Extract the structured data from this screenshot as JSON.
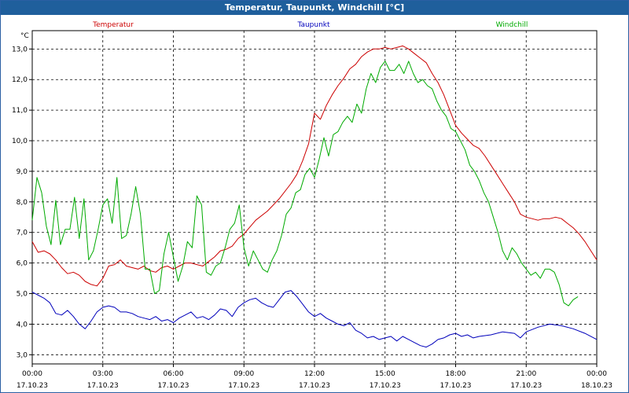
{
  "window": {
    "title": "Temperatur, Taupunkt, Windchill [°C]"
  },
  "chart_data": {
    "type": "line",
    "title": "Temperatur, Taupunkt, Windchill [°C]",
    "yunit": "°C",
    "ylim": [
      2.7,
      13.6
    ],
    "yticks": [
      "3,0",
      "4,0",
      "5,0",
      "6,0",
      "7,0",
      "8,0",
      "9,0",
      "10,0",
      "11,0",
      "12,0",
      "13,0"
    ],
    "xticks": [
      {
        "time": "00:00",
        "date": "17.10.23"
      },
      {
        "time": "03:00",
        "date": "17.10.23"
      },
      {
        "time": "06:00",
        "date": "17.10.23"
      },
      {
        "time": "09:00",
        "date": "17.10.23"
      },
      {
        "time": "12:00",
        "date": "17.10.23"
      },
      {
        "time": "15:00",
        "date": "17.10.23"
      },
      {
        "time": "18:00",
        "date": "17.10.23"
      },
      {
        "time": "21:00",
        "date": "17.10.23"
      },
      {
        "time": "00:00",
        "date": "18.10.23"
      }
    ],
    "xlim_hours": [
      0,
      24
    ],
    "grid": true,
    "series": [
      {
        "name": "Temperatur",
        "color": "#cc0000",
        "points": [
          [
            0,
            6.7
          ],
          [
            0.25,
            6.35
          ],
          [
            0.5,
            6.4
          ],
          [
            0.75,
            6.3
          ],
          [
            1,
            6.1
          ],
          [
            1.25,
            5.85
          ],
          [
            1.5,
            5.65
          ],
          [
            1.75,
            5.7
          ],
          [
            2,
            5.6
          ],
          [
            2.25,
            5.4
          ],
          [
            2.5,
            5.3
          ],
          [
            2.75,
            5.25
          ],
          [
            3,
            5.5
          ],
          [
            3.25,
            5.9
          ],
          [
            3.5,
            5.95
          ],
          [
            3.75,
            6.1
          ],
          [
            4,
            5.9
          ],
          [
            4.25,
            5.85
          ],
          [
            4.5,
            5.8
          ],
          [
            4.75,
            5.9
          ],
          [
            5,
            5.75
          ],
          [
            5.25,
            5.7
          ],
          [
            5.5,
            5.85
          ],
          [
            5.75,
            5.9
          ],
          [
            6,
            5.8
          ],
          [
            6.25,
            5.9
          ],
          [
            6.5,
            6.0
          ],
          [
            6.75,
            6.0
          ],
          [
            7,
            5.95
          ],
          [
            7.25,
            5.9
          ],
          [
            7.5,
            6.05
          ],
          [
            7.75,
            6.2
          ],
          [
            8,
            6.4
          ],
          [
            8.25,
            6.45
          ],
          [
            8.5,
            6.55
          ],
          [
            8.75,
            6.8
          ],
          [
            9,
            6.95
          ],
          [
            9.5,
            7.4
          ],
          [
            10,
            7.7
          ],
          [
            10.5,
            8.1
          ],
          [
            11,
            8.6
          ],
          [
            11.25,
            8.9
          ],
          [
            11.5,
            9.35
          ],
          [
            11.75,
            9.9
          ],
          [
            12,
            10.9
          ],
          [
            12.25,
            10.7
          ],
          [
            12.5,
            11.15
          ],
          [
            12.75,
            11.5
          ],
          [
            13,
            11.8
          ],
          [
            13.25,
            12.05
          ],
          [
            13.5,
            12.35
          ],
          [
            13.75,
            12.5
          ],
          [
            14,
            12.75
          ],
          [
            14.25,
            12.9
          ],
          [
            14.5,
            13.0
          ],
          [
            14.75,
            13.0
          ],
          [
            15,
            13.05
          ],
          [
            15.25,
            13.0
          ],
          [
            15.5,
            13.05
          ],
          [
            15.75,
            13.1
          ],
          [
            16,
            13.0
          ],
          [
            16.25,
            12.85
          ],
          [
            16.5,
            12.7
          ],
          [
            16.75,
            12.55
          ],
          [
            17,
            12.2
          ],
          [
            17.25,
            11.9
          ],
          [
            17.5,
            11.5
          ],
          [
            17.75,
            11.0
          ],
          [
            18,
            10.5
          ],
          [
            18.25,
            10.25
          ],
          [
            18.5,
            10.05
          ],
          [
            18.75,
            9.85
          ],
          [
            19,
            9.75
          ],
          [
            19.25,
            9.5
          ],
          [
            19.5,
            9.2
          ],
          [
            19.75,
            8.9
          ],
          [
            20,
            8.6
          ],
          [
            20.25,
            8.3
          ],
          [
            20.5,
            8.0
          ],
          [
            20.75,
            7.6
          ],
          [
            21,
            7.5
          ],
          [
            21.25,
            7.45
          ],
          [
            21.5,
            7.4
          ],
          [
            21.75,
            7.45
          ],
          [
            22,
            7.45
          ],
          [
            22.25,
            7.5
          ],
          [
            22.5,
            7.45
          ],
          [
            22.75,
            7.3
          ],
          [
            23,
            7.15
          ],
          [
            23.25,
            6.95
          ],
          [
            23.5,
            6.7
          ],
          [
            23.75,
            6.4
          ],
          [
            24,
            6.1
          ]
        ]
      },
      {
        "name": "Taupunkt",
        "color": "#0000bb",
        "points": [
          [
            0,
            5.05
          ],
          [
            0.25,
            4.95
          ],
          [
            0.5,
            4.85
          ],
          [
            0.75,
            4.7
          ],
          [
            1,
            4.35
          ],
          [
            1.25,
            4.3
          ],
          [
            1.5,
            4.45
          ],
          [
            1.75,
            4.25
          ],
          [
            2,
            4.0
          ],
          [
            2.25,
            3.85
          ],
          [
            2.5,
            4.1
          ],
          [
            2.75,
            4.4
          ],
          [
            3,
            4.55
          ],
          [
            3.25,
            4.6
          ],
          [
            3.5,
            4.55
          ],
          [
            3.75,
            4.4
          ],
          [
            4,
            4.4
          ],
          [
            4.25,
            4.35
          ],
          [
            4.5,
            4.25
          ],
          [
            4.75,
            4.2
          ],
          [
            5,
            4.15
          ],
          [
            5.25,
            4.25
          ],
          [
            5.5,
            4.1
          ],
          [
            5.75,
            4.15
          ],
          [
            6,
            4.05
          ],
          [
            6.25,
            4.2
          ],
          [
            6.5,
            4.3
          ],
          [
            6.75,
            4.4
          ],
          [
            7,
            4.2
          ],
          [
            7.25,
            4.25
          ],
          [
            7.5,
            4.15
          ],
          [
            7.75,
            4.3
          ],
          [
            8,
            4.5
          ],
          [
            8.25,
            4.45
          ],
          [
            8.5,
            4.25
          ],
          [
            8.75,
            4.55
          ],
          [
            9,
            4.7
          ],
          [
            9.25,
            4.8
          ],
          [
            9.5,
            4.85
          ],
          [
            9.75,
            4.7
          ],
          [
            10,
            4.6
          ],
          [
            10.25,
            4.55
          ],
          [
            10.5,
            4.8
          ],
          [
            10.75,
            5.05
          ],
          [
            11,
            5.1
          ],
          [
            11.25,
            4.9
          ],
          [
            11.5,
            4.65
          ],
          [
            11.75,
            4.4
          ],
          [
            12,
            4.25
          ],
          [
            12.25,
            4.35
          ],
          [
            12.5,
            4.2
          ],
          [
            12.75,
            4.1
          ],
          [
            13,
            4.0
          ],
          [
            13.25,
            3.95
          ],
          [
            13.5,
            4.05
          ],
          [
            13.75,
            3.8
          ],
          [
            14,
            3.7
          ],
          [
            14.25,
            3.55
          ],
          [
            14.5,
            3.6
          ],
          [
            14.75,
            3.5
          ],
          [
            15,
            3.55
          ],
          [
            15.25,
            3.6
          ],
          [
            15.5,
            3.45
          ],
          [
            15.75,
            3.6
          ],
          [
            16,
            3.5
          ],
          [
            16.25,
            3.4
          ],
          [
            16.5,
            3.3
          ],
          [
            16.75,
            3.25
          ],
          [
            17,
            3.35
          ],
          [
            17.25,
            3.5
          ],
          [
            17.5,
            3.55
          ],
          [
            17.75,
            3.65
          ],
          [
            18,
            3.7
          ],
          [
            18.25,
            3.6
          ],
          [
            18.5,
            3.65
          ],
          [
            18.75,
            3.55
          ],
          [
            19,
            3.6
          ],
          [
            19.5,
            3.65
          ],
          [
            20,
            3.75
          ],
          [
            20.5,
            3.7
          ],
          [
            20.75,
            3.55
          ],
          [
            21,
            3.75
          ],
          [
            21.5,
            3.9
          ],
          [
            22,
            4.0
          ],
          [
            22.5,
            3.95
          ],
          [
            23,
            3.85
          ],
          [
            23.5,
            3.7
          ],
          [
            24,
            3.5
          ]
        ]
      },
      {
        "name": "Windchill",
        "color": "#00aa00",
        "points": [
          [
            0,
            7.4
          ],
          [
            0.2,
            8.8
          ],
          [
            0.4,
            8.3
          ],
          [
            0.6,
            7.2
          ],
          [
            0.8,
            6.6
          ],
          [
            1,
            8.05
          ],
          [
            1.2,
            6.6
          ],
          [
            1.4,
            7.1
          ],
          [
            1.6,
            7.1
          ],
          [
            1.8,
            8.15
          ],
          [
            2,
            6.8
          ],
          [
            2.2,
            8.1
          ],
          [
            2.4,
            6.1
          ],
          [
            2.6,
            6.4
          ],
          [
            2.8,
            7.1
          ],
          [
            3,
            7.9
          ],
          [
            3.2,
            8.1
          ],
          [
            3.4,
            7.3
          ],
          [
            3.6,
            8.8
          ],
          [
            3.8,
            6.8
          ],
          [
            4,
            6.9
          ],
          [
            4.2,
            7.6
          ],
          [
            4.4,
            8.5
          ],
          [
            4.6,
            7.6
          ],
          [
            4.8,
            5.8
          ],
          [
            5,
            5.8
          ],
          [
            5.2,
            5.0
          ],
          [
            5.4,
            5.1
          ],
          [
            5.6,
            6.3
          ],
          [
            5.8,
            7.0
          ],
          [
            6,
            6.2
          ],
          [
            6.2,
            5.4
          ],
          [
            6.4,
            5.9
          ],
          [
            6.6,
            6.7
          ],
          [
            6.8,
            6.5
          ],
          [
            7,
            8.2
          ],
          [
            7.2,
            7.9
          ],
          [
            7.4,
            5.7
          ],
          [
            7.6,
            5.6
          ],
          [
            7.8,
            5.9
          ],
          [
            8,
            6.0
          ],
          [
            8.2,
            6.5
          ],
          [
            8.4,
            7.1
          ],
          [
            8.6,
            7.3
          ],
          [
            8.8,
            7.9
          ],
          [
            9,
            6.5
          ],
          [
            9.2,
            5.9
          ],
          [
            9.4,
            6.4
          ],
          [
            9.6,
            6.1
          ],
          [
            9.8,
            5.8
          ],
          [
            10,
            5.7
          ],
          [
            10.2,
            6.1
          ],
          [
            10.4,
            6.4
          ],
          [
            10.6,
            6.9
          ],
          [
            10.8,
            7.6
          ],
          [
            11,
            7.8
          ],
          [
            11.2,
            8.3
          ],
          [
            11.4,
            8.4
          ],
          [
            11.6,
            8.9
          ],
          [
            11.8,
            9.1
          ],
          [
            12,
            8.8
          ],
          [
            12.2,
            9.4
          ],
          [
            12.4,
            10.1
          ],
          [
            12.6,
            9.5
          ],
          [
            12.8,
            10.2
          ],
          [
            13,
            10.3
          ],
          [
            13.2,
            10.6
          ],
          [
            13.4,
            10.8
          ],
          [
            13.6,
            10.6
          ],
          [
            13.8,
            11.2
          ],
          [
            14,
            10.9
          ],
          [
            14.2,
            11.7
          ],
          [
            14.4,
            12.2
          ],
          [
            14.6,
            11.9
          ],
          [
            14.8,
            12.4
          ],
          [
            15,
            12.6
          ],
          [
            15.2,
            12.3
          ],
          [
            15.4,
            12.3
          ],
          [
            15.6,
            12.5
          ],
          [
            15.8,
            12.2
          ],
          [
            16,
            12.6
          ],
          [
            16.2,
            12.2
          ],
          [
            16.4,
            11.9
          ],
          [
            16.6,
            12.0
          ],
          [
            16.8,
            11.8
          ],
          [
            17,
            11.7
          ],
          [
            17.2,
            11.3
          ],
          [
            17.4,
            11.0
          ],
          [
            17.6,
            10.8
          ],
          [
            17.8,
            10.4
          ],
          [
            18,
            10.3
          ],
          [
            18.2,
            10.0
          ],
          [
            18.4,
            9.7
          ],
          [
            18.6,
            9.2
          ],
          [
            18.8,
            9.0
          ],
          [
            19,
            8.7
          ],
          [
            19.2,
            8.3
          ],
          [
            19.4,
            8.0
          ],
          [
            19.6,
            7.5
          ],
          [
            19.8,
            7.0
          ],
          [
            20,
            6.4
          ],
          [
            20.2,
            6.1
          ],
          [
            20.4,
            6.5
          ],
          [
            20.6,
            6.3
          ],
          [
            20.8,
            6.0
          ],
          [
            21,
            5.8
          ],
          [
            21.2,
            5.6
          ],
          [
            21.4,
            5.7
          ],
          [
            21.6,
            5.5
          ],
          [
            21.8,
            5.8
          ],
          [
            22,
            5.8
          ],
          [
            22.2,
            5.7
          ],
          [
            22.4,
            5.3
          ],
          [
            22.6,
            4.7
          ],
          [
            22.8,
            4.6
          ],
          [
            23,
            4.8
          ],
          [
            23.2,
            4.9
          ]
        ]
      }
    ]
  }
}
